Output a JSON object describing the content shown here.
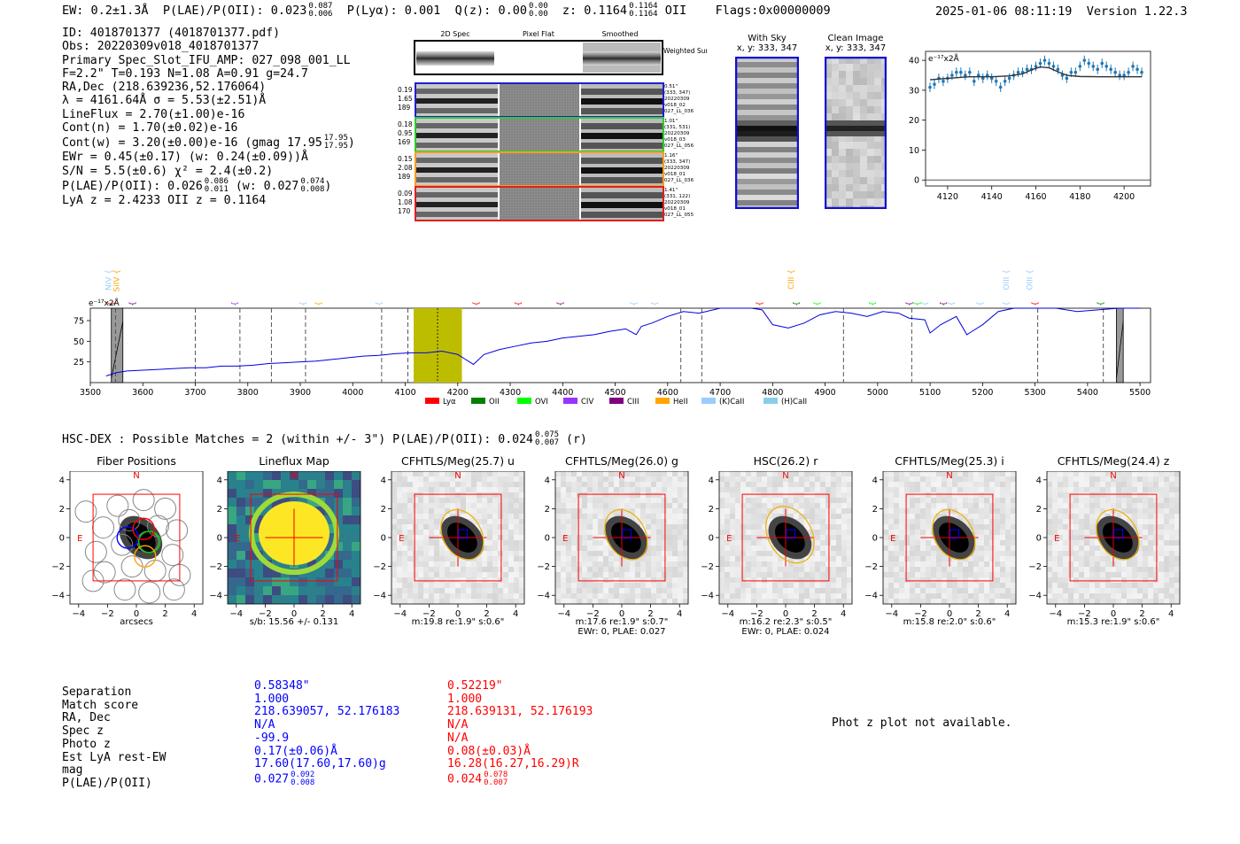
{
  "header": {
    "ew_label": "EW: 0.2±1.3Å",
    "plae_label": "P(LAE)/P(OII): 0.023",
    "plae_up": "0.087",
    "plae_dn": "0.006",
    "plya_label": "P(Lyα): 0.001",
    "qz_label": "Q(z): 0.00",
    "qz_up": "0.00",
    "qz_dn": "0.00",
    "z_label": "z: 0.1164",
    "z_up": "0.1164",
    "z_dn": "0.1164",
    "z_line": "OII",
    "flags": "Flags:0x00000009",
    "datetime": "2025-01-06 08:11:19",
    "version": "Version 1.22.3"
  },
  "info": {
    "id": "ID: 4018701377 (4018701377.pdf)",
    "obs": "Obs: 20220309v018_4018701377",
    "primary": "Primary Spec_Slot_IFU_AMP: 027_098_001_LL",
    "fwhm": "F=2.2\"  T=0.193  N=1.08  A=0.91  g=24.7",
    "radec": "RA,Dec (218.639236,52.176064)",
    "lambda": "λ = 4161.64Å  σ = 5.53(±2.51)Å",
    "lineflux": "LineFlux = 2.70(±1.00)e-16",
    "contn": "Cont(n) = 1.70(±0.02)e-16",
    "contw": "Cont(w) = 3.20(±0.00)e-16 (gmag 17.95",
    "contw_up": "17.95",
    "contw_dn": "17.95",
    "ewr": "EWr = 0.45(±0.17) (w: 0.24(±0.09))Å",
    "sn": "S/N = 5.5(±0.6)  χ² = 2.4(±0.2)",
    "plae": "P(LAE)/P(OII): 0.026",
    "plae_up": "0.086",
    "plae_dn": "0.011",
    "plae_w": "(w: 0.027",
    "plae_w_up": "0.074",
    "plae_w_dn": "0.008",
    "lyaz": "LyA z = 2.4233  OII z = 0.1164"
  },
  "spec2d": {
    "col_titles": [
      "2D Spec",
      "Pixel Flat",
      "Smoothed"
    ],
    "weighted_sum": "Weighted Sum",
    "rows": [
      {
        "vals": [
          "0.19",
          "1.65",
          "189"
        ],
        "side": [
          "0.51\"",
          "(333, 347)",
          "20220309",
          "v018_02",
          "027_LL_036"
        ],
        "color": "#1f1fd0"
      },
      {
        "vals": [
          "0.18",
          "0.95",
          "169"
        ],
        "side": [
          "1.01\"",
          "(331, 531)",
          "20220309",
          "v018_03",
          "027_LL_056"
        ],
        "color": "#2ecc2e"
      },
      {
        "vals": [
          "0.15",
          "2.08",
          "189"
        ],
        "side": [
          "1.16\"",
          "(333, 347)",
          "20220309",
          "v018_01",
          "027_LL_036"
        ],
        "color": "#f5a020"
      },
      {
        "vals": [
          "0.09",
          "1.08",
          "170"
        ],
        "side": [
          "1.41\"",
          "(331, 122)",
          "20220309",
          "v018_01",
          "027_LL_055"
        ],
        "color": "#e02020"
      }
    ]
  },
  "sky_images": {
    "with_sky": {
      "title": "With Sky",
      "coords": "x, y: 333, 347"
    },
    "clean": {
      "title": "Clean Image",
      "coords": "x, y: 333, 347"
    }
  },
  "colors": {
    "lya": "#ff0000",
    "oii": "#008000",
    "ovi": "#00ff00",
    "civ": "#9933ff",
    "ciii": "#800080",
    "heii": "#ffa500",
    "kcaii": "#99ccff",
    "hcaii": "#87ceeb",
    "spec_line": "#0000dd",
    "highlight": "#bdbd00"
  },
  "chart_data": [
    {
      "type": "line",
      "name": "zoom-spectrum",
      "ylabel_unit": "e⁻¹⁷x2Å",
      "xlim": [
        4110,
        4212
      ],
      "ylim": [
        -2,
        43
      ],
      "xticks": [
        4120,
        4140,
        4160,
        4180,
        4200
      ],
      "yticks": [
        0,
        10,
        20,
        30,
        40
      ],
      "data_x": [
        4112,
        4114,
        4116,
        4118,
        4120,
        4122,
        4124,
        4126,
        4128,
        4130,
        4132,
        4134,
        4136,
        4138,
        4140,
        4142,
        4144,
        4146,
        4148,
        4150,
        4152,
        4154,
        4156,
        4158,
        4160,
        4162,
        4164,
        4166,
        4168,
        4170,
        4172,
        4174,
        4176,
        4178,
        4180,
        4182,
        4184,
        4186,
        4188,
        4190,
        4192,
        4194,
        4196,
        4198,
        4200,
        4202,
        4204,
        4206,
        4208
      ],
      "data_y": [
        31,
        32,
        34,
        33,
        34,
        35,
        36,
        36,
        35,
        36,
        33,
        35,
        34,
        35,
        34,
        33,
        31,
        33,
        34,
        35,
        36,
        36,
        37,
        37,
        38,
        39,
        40,
        39,
        38,
        37,
        35,
        34,
        36,
        36,
        38,
        40,
        39,
        38,
        37,
        39,
        38,
        37,
        36,
        35,
        35,
        36,
        38,
        37,
        36
      ],
      "fit_x": [
        4112,
        4120,
        4130,
        4140,
        4148,
        4154,
        4158,
        4162,
        4166,
        4170,
        4174,
        4180,
        4190,
        4200,
        4208
      ],
      "fit_y": [
        33.5,
        34,
        34.5,
        34.5,
        34.8,
        35.5,
        36.8,
        37.8,
        37.5,
        36.2,
        35,
        34.6,
        34.5,
        34.5,
        34.5
      ]
    },
    {
      "type": "line",
      "name": "full-spectrum",
      "ylabel_unit": "e⁻¹⁷x2Å",
      "xlim": [
        3500,
        5520
      ],
      "ylim": [
        0,
        90
      ],
      "xticks": [
        3500,
        3600,
        3700,
        3800,
        3900,
        4000,
        4100,
        4200,
        4300,
        4400,
        4500,
        4600,
        4700,
        4800,
        4900,
        5000,
        5100,
        5200,
        5300,
        5400,
        5500
      ],
      "yticks": [
        25,
        50,
        75
      ],
      "x": [
        3530,
        3550,
        3570,
        3600,
        3630,
        3660,
        3690,
        3720,
        3750,
        3780,
        3810,
        3840,
        3870,
        3900,
        3930,
        3960,
        3990,
        4020,
        4050,
        4080,
        4110,
        4140,
        4170,
        4200,
        4210,
        4230,
        4250,
        4280,
        4310,
        4340,
        4370,
        4400,
        4430,
        4460,
        4490,
        4520,
        4540,
        4550,
        4570,
        4600,
        4630,
        4660,
        4700,
        4730,
        4760,
        4780,
        4800,
        4830,
        4860,
        4890,
        4920,
        4950,
        4980,
        5010,
        5040,
        5060,
        5090,
        5100,
        5120,
        5150,
        5170,
        5180,
        5200,
        5230,
        5260,
        5300,
        5340,
        5380,
        5420,
        5460,
        5500
      ],
      "y": [
        8,
        12,
        14,
        15,
        16,
        17,
        18,
        18,
        20,
        20,
        21,
        23,
        24,
        25,
        26,
        28,
        30,
        32,
        33,
        35,
        36,
        36,
        38,
        34,
        30,
        22,
        34,
        40,
        44,
        48,
        50,
        54,
        56,
        58,
        62,
        65,
        58,
        68,
        72,
        80,
        86,
        84,
        90,
        92,
        92,
        88,
        70,
        66,
        72,
        82,
        86,
        84,
        80,
        86,
        84,
        78,
        76,
        60,
        70,
        80,
        58,
        62,
        70,
        86,
        90,
        92,
        90,
        86,
        88,
        90,
        90
      ],
      "highlight_range": [
        4116,
        4208
      ],
      "highlight_center": 4161.6,
      "masked": [
        [
          3540,
          3562
        ],
        [
          5455,
          5468
        ]
      ],
      "dashed_lines": [
        3548,
        3700,
        3785,
        3845,
        3910,
        4055,
        4105,
        4625,
        4665,
        4935,
        5065,
        5305,
        5430
      ],
      "line_labels_near": [
        {
          "label": "OVI",
          "x": 3545,
          "row": 1,
          "color": "#ff0000"
        },
        {
          "label": "HeII",
          "x": 3585,
          "row": 1,
          "color": "#800080"
        },
        {
          "label": "SIV",
          "x": 3780,
          "row": 1,
          "color": "#9933ff"
        },
        {
          "label": "OII",
          "x": 3910,
          "row": 1,
          "color": "#99ccff"
        },
        {
          "label": "CIV",
          "x": 3940,
          "row": 1,
          "color": "#ffa500"
        },
        {
          "label": "NeIII",
          "x": 4055,
          "row": 1,
          "color": "#99ccff"
        },
        {
          "label": "NV",
          "x": 4240,
          "row": 1,
          "color": "#ff0000"
        },
        {
          "label": "SiII",
          "x": 4320,
          "row": 1,
          "color": "#ff0000"
        },
        {
          "label": "HeII",
          "x": 4400,
          "row": 1,
          "color": "#800080"
        },
        {
          "label": "Hγ",
          "x": 4540,
          "row": 1,
          "color": "#99ccff"
        },
        {
          "label": "Hγ",
          "x": 4580,
          "row": 1,
          "color": "#99ccff"
        },
        {
          "label": "SiIV",
          "x": 4780,
          "row": 1,
          "color": "#ff0000"
        },
        {
          "label": "Hγ",
          "x": 4850,
          "row": 1,
          "color": "#008000"
        },
        {
          "label": "Lyα",
          "x": 4890,
          "row": 1,
          "color": "#00ff00"
        },
        {
          "label": "NV",
          "x": 4995,
          "row": 1,
          "color": "#00ff00"
        },
        {
          "label": "CII",
          "x": 5065,
          "row": 1,
          "color": "#800080"
        },
        {
          "label": "SiII",
          "x": 5080,
          "row": 1,
          "color": "#00ff00"
        },
        {
          "label": "Hδ",
          "x": 5095,
          "row": 1,
          "color": "#99ccff"
        },
        {
          "label": "CIII",
          "x": 5130,
          "row": 1,
          "color": "#800080"
        },
        {
          "label": "OII",
          "x": 5145,
          "row": 1,
          "color": "#99ccff"
        },
        {
          "label": "OIII",
          "x": 5200,
          "row": 1,
          "color": "#99ccff"
        },
        {
          "label": "OIII",
          "x": 5250,
          "row": 1,
          "color": "#99ccff"
        },
        {
          "label": "CIV",
          "x": 5305,
          "row": 1,
          "color": "#ff0000"
        },
        {
          "label": "Hβ",
          "x": 5430,
          "row": 1,
          "color": "#008000"
        },
        {
          "label": "NIV",
          "x": 3540,
          "row": 2,
          "color": "#99ccff"
        },
        {
          "label": "SiIV",
          "x": 3555,
          "row": 2,
          "color": "#ffa500"
        },
        {
          "label": "CIII",
          "x": 4840,
          "row": 2,
          "color": "#ffa500"
        },
        {
          "label": "OIII",
          "x": 5250,
          "row": 2,
          "color": "#99ccff"
        },
        {
          "label": "OIII",
          "x": 5295,
          "row": 2,
          "color": "#99ccff"
        }
      ],
      "legend": [
        {
          "label": "Lyα",
          "color": "#ff0000"
        },
        {
          "label": "OII",
          "color": "#008000"
        },
        {
          "label": "OVI",
          "color": "#00ff00"
        },
        {
          "label": "CIV",
          "color": "#9933ff"
        },
        {
          "label": "CIII",
          "color": "#800080"
        },
        {
          "label": "HeII",
          "color": "#ffa500"
        },
        {
          "label": "(K)CaII",
          "color": "#99ccff"
        },
        {
          "label": "(H)CaII",
          "color": "#87ceeb"
        }
      ]
    }
  ],
  "hsc": {
    "line": "HSC-DEX : Possible Matches = 2 (within +/- 3\")  P(LAE)/P(OII): 0.024",
    "up": "0.075",
    "dn": "0.007",
    "band": "(r)"
  },
  "cutouts": [
    {
      "title": "Fiber Positions",
      "cap1": "arcsecs",
      "cap2": "",
      "kind": "fiber"
    },
    {
      "title": "Lineflux Map",
      "cap1": "s/b: 15.56 +/- 0.131",
      "cap2": "",
      "kind": "flux"
    },
    {
      "title": "CFHTLS/Meg(25.7) u",
      "cap1": "m:19.8  re:1.9\"  s:0.6\"",
      "cap2": "",
      "kind": "galaxy"
    },
    {
      "title": "CFHTLS/Meg(26.0) g",
      "cap1": "m:17.6  re:1.9\"  s:0.7\"",
      "cap2": "EWr: 0, PLAE: 0.027",
      "kind": "galaxy"
    },
    {
      "title": "HSC(26.2) r",
      "cap1": "m:16.2  re:2.3\"  s:0.5\"",
      "cap2": "EWr: 0, PLAE: 0.024",
      "kind": "galaxy"
    },
    {
      "title": "CFHTLS/Meg(25.3) i",
      "cap1": "m:15.8  re:2.0\"  s:0.6\"",
      "cap2": "",
      "kind": "galaxy"
    },
    {
      "title": "CFHTLS/Meg(24.4) z",
      "cap1": "m:15.3  re:1.9\"  s:0.6\"",
      "cap2": "",
      "kind": "galaxy"
    }
  ],
  "cutout_axis": {
    "ticks": [
      -4,
      -2,
      0,
      2,
      4
    ],
    "north": "N",
    "east": "E"
  },
  "match_table": {
    "labels": [
      "Separation",
      "Match score",
      "RA, Dec",
      "Spec z",
      "Photo z",
      "Est LyA rest-EW",
      "mag",
      "P(LAE)/P(OII)"
    ],
    "col1": [
      "0.58348\"",
      "1.000",
      "218.639057, 52.176183",
      "N/A",
      "-99.9",
      "0.17(±0.06)Å",
      "17.60(17.60,17.60)g",
      "0.027"
    ],
    "col1_plae_up": "0.092",
    "col1_plae_dn": "0.008",
    "col2": [
      "0.52219\"",
      "1.000",
      "218.639131, 52.176193",
      "N/A",
      "N/A",
      "0.08(±0.03)Å",
      "16.28(16.27,16.29)R",
      "0.024"
    ],
    "col2_plae_up": "0.078",
    "col2_plae_dn": "0.007"
  },
  "photz_note": "Phot z plot not available."
}
